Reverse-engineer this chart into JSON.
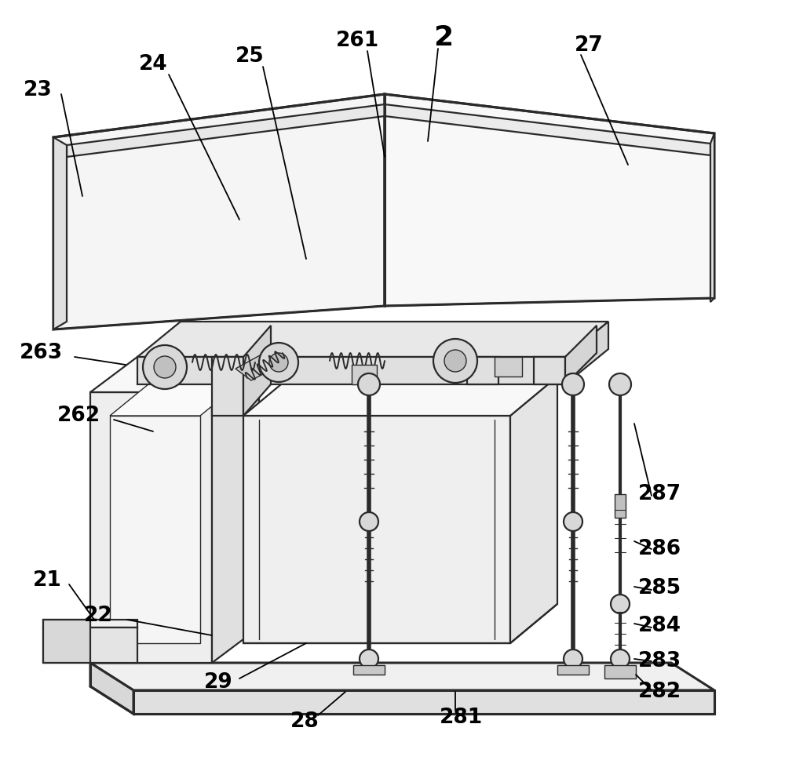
{
  "bg_color": "#ffffff",
  "line_color": "#2a2a2a",
  "label_color": "#000000",
  "fig_width": 10.0,
  "fig_height": 9.74,
  "lw_main": 1.6,
  "lw_thin": 1.0,
  "lw_thick": 2.2
}
